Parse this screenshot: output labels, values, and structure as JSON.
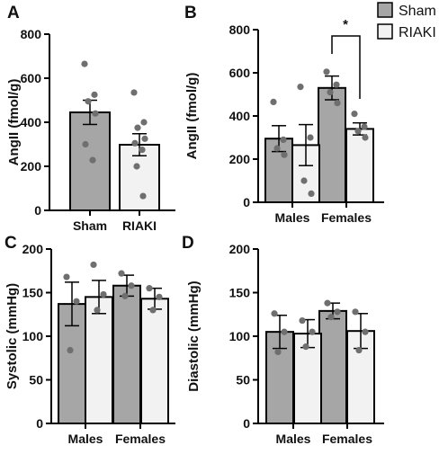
{
  "colors": {
    "sham": "#a6a6a6",
    "riaki": "#f2f2f2",
    "point": "#6f6f6f",
    "axis": "#000000"
  },
  "legend": {
    "items": [
      "Sham",
      "RIAKI"
    ]
  },
  "chart_data": [
    {
      "panel": "A",
      "type": "bar",
      "ylabel": "AngII (fmol/g)",
      "ylim": [
        0,
        800
      ],
      "yticks": [
        "0",
        "200",
        "400",
        "600",
        "800"
      ],
      "categories": [
        "Sham",
        "RIAKI"
      ],
      "series": [
        {
          "values": [
            445,
            298
          ],
          "sem": [
            55,
            50
          ],
          "points": [
            [
              665,
              525,
              495,
              440,
              300,
              228
            ],
            [
              535,
              400,
              375,
              325,
              305,
              275,
              200,
              65
            ]
          ]
        }
      ]
    },
    {
      "panel": "B",
      "type": "bar",
      "ylabel": "AngII (fmol/g)",
      "ylim": [
        0,
        800
      ],
      "yticks": [
        "0",
        "200",
        "400",
        "600",
        "800"
      ],
      "categories": [
        "Males",
        "Females"
      ],
      "series": [
        {
          "name": "Sham",
          "values": [
            295,
            530
          ],
          "sem": [
            60,
            55
          ],
          "points": [
            [
              465,
              290,
              250,
              220
            ],
            [
              605,
              545,
              510,
              460
            ]
          ]
        },
        {
          "name": "RIAKI",
          "values": [
            265,
            340
          ],
          "sem": [
            95,
            28
          ],
          "points": [
            [
              535,
              300,
              100,
              40
            ],
            [
              410,
              350,
              330,
              300
            ]
          ]
        }
      ],
      "annotation": "*"
    },
    {
      "panel": "C",
      "type": "bar",
      "ylabel": "Systolic (mmHg)",
      "ylim": [
        0,
        200
      ],
      "yticks": [
        "0",
        "50",
        "100",
        "150",
        "200"
      ],
      "categories": [
        "Males",
        "Females"
      ],
      "series": [
        {
          "name": "Sham",
          "values": [
            137,
            158
          ],
          "sem": [
            25,
            12
          ],
          "points": [
            [
              168,
              140,
              84
            ],
            [
              172,
              158,
              146
            ]
          ]
        },
        {
          "name": "RIAKI",
          "values": [
            145,
            143
          ],
          "sem": [
            19,
            12
          ],
          "points": [
            [
              182,
              148,
              130
            ],
            [
              155,
              145,
              130
            ]
          ]
        }
      ]
    },
    {
      "panel": "D",
      "type": "bar",
      "ylabel": "Diastolic (mmHg)",
      "ylim": [
        0,
        200
      ],
      "yticks": [
        "0",
        "50",
        "100",
        "150",
        "200"
      ],
      "categories": [
        "Males",
        "Females"
      ],
      "series": [
        {
          "name": "Sham",
          "values": [
            105,
            129
          ],
          "sem": [
            19,
            9
          ],
          "points": [
            [
              126,
              105,
              82
            ],
            [
              138,
              128,
              122
            ]
          ]
        },
        {
          "name": "RIAKI",
          "values": [
            103,
            106
          ],
          "sem": [
            16,
            20
          ],
          "points": [
            [
              118,
              105,
              88
            ],
            [
              128,
              105,
              84
            ]
          ]
        }
      ]
    }
  ]
}
